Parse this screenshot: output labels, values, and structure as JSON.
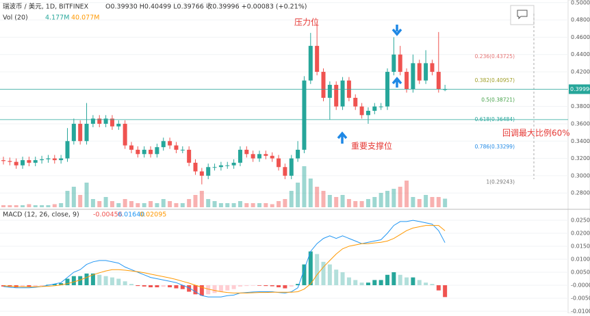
{
  "header": {
    "symbol": "瑞波币 / 美元, 1D, BITFINEX",
    "ohlc": "O0.39930 H0.40499 L0.39766 收0.39996 +0.00083 (+0.21%)"
  },
  "chart_data": {
    "type": "candlestick",
    "up_color": "#26a69a",
    "down_color": "#ef5350",
    "ylim": [
      0.262,
      0.503
    ],
    "yticks": [
      {
        "value": 0.5,
        "label": "0.50000"
      },
      {
        "value": 0.48,
        "label": "0.48000"
      },
      {
        "value": 0.46,
        "label": "0.46000"
      },
      {
        "value": 0.44,
        "label": "0.44000"
      },
      {
        "value": 0.42,
        "label": "0.42000"
      },
      {
        "value": 0.4,
        "label": "0.40000"
      },
      {
        "value": 0.38,
        "label": "0.38000"
      },
      {
        "value": 0.36,
        "label": "0.36000"
      },
      {
        "value": 0.34,
        "label": "0.34000"
      },
      {
        "value": 0.32,
        "label": "0.32000"
      },
      {
        "value": 0.3,
        "label": "0.30000"
      },
      {
        "value": 0.28,
        "label": "0.28000"
      }
    ],
    "open": [
      0.318,
      0.317,
      0.316,
      0.312,
      0.318,
      0.315,
      0.318,
      0.319,
      0.32,
      0.318,
      0.32,
      0.34,
      0.36,
      0.34,
      0.36,
      0.366,
      0.36,
      0.366,
      0.357,
      0.36,
      0.335,
      0.33,
      0.325,
      0.33,
      0.325,
      0.333,
      0.34,
      0.335,
      0.33,
      0.33,
      0.315,
      0.305,
      0.3,
      0.31,
      0.31,
      0.312,
      0.312,
      0.315,
      0.33,
      0.325,
      0.32,
      0.325,
      0.323,
      0.32,
      0.31,
      0.3,
      0.32,
      0.33,
      0.41,
      0.45,
      0.42,
      0.39,
      0.405,
      0.38,
      0.41,
      0.39,
      0.38,
      0.37,
      0.375,
      0.38,
      0.38,
      0.42,
      0.44,
      0.42,
      0.4,
      0.43,
      0.41,
      0.43,
      0.42,
      0.3993
    ],
    "high": [
      0.322,
      0.321,
      0.32,
      0.322,
      0.322,
      0.322,
      0.323,
      0.324,
      0.324,
      0.324,
      0.355,
      0.366,
      0.364,
      0.384,
      0.37,
      0.37,
      0.37,
      0.37,
      0.364,
      0.364,
      0.339,
      0.334,
      0.334,
      0.334,
      0.337,
      0.344,
      0.344,
      0.339,
      0.334,
      0.334,
      0.319,
      0.309,
      0.314,
      0.314,
      0.316,
      0.316,
      0.319,
      0.334,
      0.334,
      0.329,
      0.329,
      0.329,
      0.327,
      0.324,
      0.314,
      0.324,
      0.34,
      0.415,
      0.465,
      0.478,
      0.424,
      0.409,
      0.409,
      0.414,
      0.414,
      0.394,
      0.384,
      0.379,
      0.384,
      0.384,
      0.424,
      0.46,
      0.45,
      0.424,
      0.44,
      0.434,
      0.445,
      0.434,
      0.466,
      0.40499
    ],
    "low": [
      0.313,
      0.312,
      0.308,
      0.308,
      0.311,
      0.311,
      0.314,
      0.315,
      0.314,
      0.314,
      0.316,
      0.336,
      0.336,
      0.336,
      0.356,
      0.356,
      0.356,
      0.353,
      0.353,
      0.331,
      0.326,
      0.321,
      0.321,
      0.321,
      0.321,
      0.329,
      0.331,
      0.326,
      0.326,
      0.311,
      0.301,
      0.29,
      0.296,
      0.306,
      0.306,
      0.308,
      0.308,
      0.311,
      0.321,
      0.316,
      0.316,
      0.319,
      0.316,
      0.306,
      0.296,
      0.296,
      0.316,
      0.326,
      0.406,
      0.416,
      0.386,
      0.365,
      0.376,
      0.376,
      0.386,
      0.376,
      0.366,
      0.36,
      0.371,
      0.376,
      0.376,
      0.416,
      0.416,
      0.396,
      0.396,
      0.406,
      0.406,
      0.416,
      0.396,
      0.39766
    ],
    "close": [
      0.317,
      0.316,
      0.312,
      0.318,
      0.315,
      0.318,
      0.319,
      0.32,
      0.318,
      0.32,
      0.34,
      0.36,
      0.34,
      0.36,
      0.366,
      0.36,
      0.366,
      0.357,
      0.36,
      0.335,
      0.33,
      0.325,
      0.33,
      0.325,
      0.333,
      0.34,
      0.335,
      0.33,
      0.33,
      0.315,
      0.305,
      0.3,
      0.31,
      0.31,
      0.312,
      0.312,
      0.315,
      0.33,
      0.325,
      0.32,
      0.325,
      0.323,
      0.32,
      0.31,
      0.3,
      0.32,
      0.33,
      0.41,
      0.45,
      0.42,
      0.39,
      0.405,
      0.38,
      0.41,
      0.39,
      0.38,
      0.37,
      0.375,
      0.38,
      0.38,
      0.42,
      0.44,
      0.42,
      0.4,
      0.43,
      0.41,
      0.43,
      0.42,
      0.4,
      0.39996
    ],
    "current_price": 0.39996,
    "price_line_color": "#26a69a",
    "support_line": 0.36484,
    "fib_levels": [
      {
        "label": "0.236(0.43725)",
        "value": 0.43725,
        "color": "#e57373"
      },
      {
        "label": "0.382(0.40957)",
        "value": 0.40957,
        "color": "#9e9d24"
      },
      {
        "label": "0.5(0.38721)",
        "value": 0.38721,
        "color": "#43a047"
      },
      {
        "label": "0.618(0.36484)",
        "value": 0.36484,
        "color": "#26a69a"
      },
      {
        "label": "0.786(0.33299)",
        "value": 0.33299,
        "color": "#1e88e5"
      },
      {
        "label": "1(0.29243)",
        "value": 0.29243,
        "color": "#757575"
      }
    ],
    "annotations": {
      "resistance": "压力位",
      "support": "重要支撑位",
      "retrace": "回调最大比例60%"
    },
    "volume": {
      "title": "Vol (20)",
      "legend": [
        "4.177M",
        "40.077M"
      ],
      "values": [
        1,
        1,
        1,
        1,
        1.5,
        1,
        1,
        1,
        1.5,
        2,
        8,
        10,
        6,
        12,
        4,
        3,
        5,
        3,
        2,
        4,
        3,
        2,
        2,
        3,
        2,
        4,
        3,
        2,
        2,
        4,
        6,
        8,
        4,
        3,
        2,
        2,
        2,
        3,
        2,
        2,
        2,
        2,
        1.5,
        3,
        4,
        8,
        12,
        20,
        14,
        10,
        8,
        6,
        5,
        6,
        4,
        3,
        3,
        4,
        5,
        7,
        8,
        9,
        10,
        13,
        5,
        4,
        6,
        5,
        5,
        4.177
      ]
    },
    "macd": {
      "title": "MACD (12, 26, close, 9)",
      "legend": [
        "-0.00456",
        "0.01640",
        "0.02095"
      ],
      "ylim": [
        -0.0108,
        0.0287
      ],
      "yticks": [
        {
          "value": 0.025,
          "label": "0.02500"
        },
        {
          "value": 0.02,
          "label": "0.02000"
        },
        {
          "value": 0.015,
          "label": "0.01500"
        },
        {
          "value": 0.01,
          "label": "0.01000"
        },
        {
          "value": 0.005,
          "label": "0.00500"
        },
        {
          "value": 0,
          "label": "-0.00000"
        },
        {
          "value": -0.005,
          "label": "-0.00500"
        },
        {
          "value": -0.01,
          "label": "-0.01000"
        }
      ],
      "histogram": [
        -0.0005,
        -0.0006,
        -0.0008,
        -0.0006,
        -0.0007,
        -0.0005,
        -0.0003,
        0.0002,
        0.0005,
        0.0008,
        0.0025,
        0.0035,
        0.0035,
        0.0045,
        0.0045,
        0.004,
        0.0035,
        0.003,
        0.0025,
        0.0015,
        0.0005,
        -0.0003,
        -0.0005,
        -0.0008,
        -0.0008,
        -0.0006,
        -0.0008,
        -0.0012,
        -0.0015,
        -0.0025,
        -0.0035,
        -0.004,
        -0.0035,
        -0.003,
        -0.0025,
        -0.002,
        -0.0015,
        -0.0005,
        -0.0003,
        -0.0002,
        -0.0002,
        -0.0003,
        -0.0004,
        -0.0008,
        -0.0012,
        -0.0005,
        0.0005,
        0.008,
        0.013,
        0.012,
        0.009,
        0.008,
        0.006,
        0.005,
        0.003,
        0.002,
        0.001,
        0.001,
        0.002,
        0.002,
        0.004,
        0.005,
        0.004,
        0.003,
        0.003,
        0.002,
        0.001,
        0.0005,
        -0.002,
        -0.00456
      ],
      "macd_line": {
        "color": "#2196f3",
        "values": [
          -0.0005,
          -0.0008,
          -0.001,
          -0.001,
          -0.001,
          -0.0008,
          -0.0005,
          0,
          0.0005,
          0.001,
          0.003,
          0.005,
          0.006,
          0.008,
          0.009,
          0.0095,
          0.0095,
          0.009,
          0.0085,
          0.007,
          0.006,
          0.005,
          0.004,
          0.003,
          0.0025,
          0.002,
          0.0015,
          0.001,
          0,
          -0.001,
          -0.0025,
          -0.004,
          -0.0045,
          -0.0045,
          -0.0045,
          -0.004,
          -0.0038,
          -0.003,
          -0.0028,
          -0.0026,
          -0.0025,
          -0.0025,
          -0.0025,
          -0.0028,
          -0.003,
          -0.0025,
          -0.001,
          0.006,
          0.013,
          0.016,
          0.018,
          0.019,
          0.018,
          0.019,
          0.018,
          0.017,
          0.016,
          0.0165,
          0.017,
          0.0175,
          0.02,
          0.023,
          0.0245,
          0.0245,
          0.025,
          0.0245,
          0.024,
          0.0235,
          0.021,
          0.0164
        ]
      },
      "signal_line": {
        "color": "#ff9800",
        "values": [
          -0.0002,
          -0.0004,
          -0.0005,
          -0.0006,
          -0.0006,
          -0.0006,
          -0.0005,
          -0.0004,
          -0.0002,
          0.0001,
          0.0006,
          0.0013,
          0.002,
          0.003,
          0.004,
          0.0048,
          0.0055,
          0.006,
          0.006,
          0.0058,
          0.0055,
          0.0052,
          0.0048,
          0.0043,
          0.0038,
          0.0033,
          0.0028,
          0.0022,
          0.0015,
          0.0008,
          0,
          -0.0008,
          -0.0015,
          -0.002,
          -0.0025,
          -0.0028,
          -0.003,
          -0.003,
          -0.003,
          -0.0029,
          -0.0028,
          -0.0028,
          -0.0027,
          -0.0027,
          -0.0027,
          -0.0027,
          -0.0025,
          -0.0015,
          0.0005,
          0.004,
          0.007,
          0.0095,
          0.012,
          0.014,
          0.015,
          0.0155,
          0.016,
          0.016,
          0.0163,
          0.0165,
          0.017,
          0.018,
          0.0195,
          0.021,
          0.022,
          0.0225,
          0.023,
          0.023,
          0.023,
          0.02095
        ]
      }
    }
  }
}
